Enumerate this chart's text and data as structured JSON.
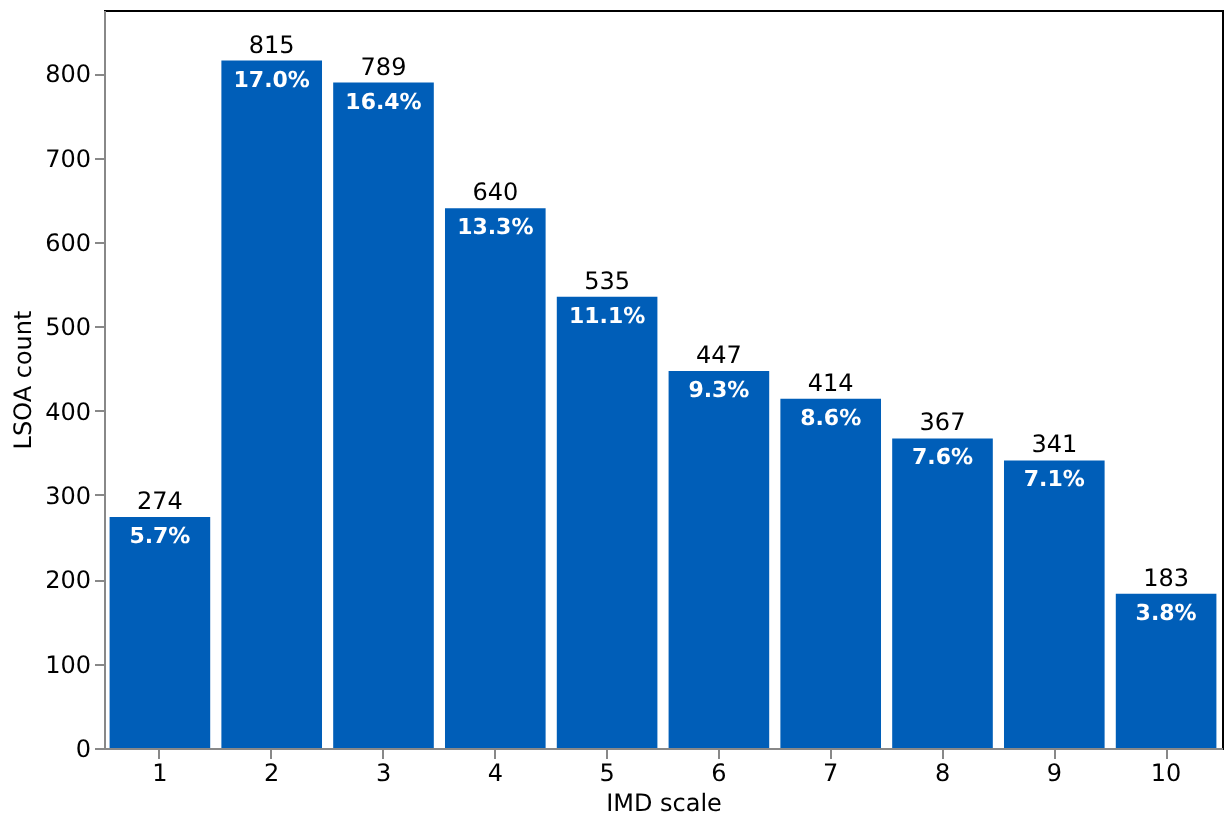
{
  "chart_data": {
    "type": "bar",
    "xlabel": "IMD scale",
    "ylabel": "LSOA count",
    "categories": [
      "1",
      "2",
      "3",
      "4",
      "5",
      "6",
      "7",
      "8",
      "9",
      "10"
    ],
    "values": [
      274,
      815,
      789,
      640,
      535,
      447,
      414,
      367,
      341,
      183
    ],
    "color": "#005eb8",
    "ylim": [
      0,
      875
    ],
    "yticks": [
      0,
      100,
      200,
      300,
      400,
      500,
      600,
      700,
      800
    ],
    "grid": false,
    "data_labels": true,
    "annotations": [
      {
        "text": "5.7%",
        "x": "1",
        "y": 274
      },
      {
        "text": "17.0%",
        "x": "2",
        "y": 815
      },
      {
        "text": "16.4%",
        "x": "3",
        "y": 789
      },
      {
        "text": "13.3%",
        "x": "4",
        "y": 640
      },
      {
        "text": "11.1%",
        "x": "5",
        "y": 535
      },
      {
        "text": "9.3%",
        "x": "6",
        "y": 447
      },
      {
        "text": "8.6%",
        "x": "7",
        "y": 414
      },
      {
        "text": "7.6%",
        "x": "8",
        "y": 367
      },
      {
        "text": "7.1%",
        "x": "9",
        "y": 341
      },
      {
        "text": "3.8%",
        "x": "10",
        "y": 183
      }
    ]
  }
}
